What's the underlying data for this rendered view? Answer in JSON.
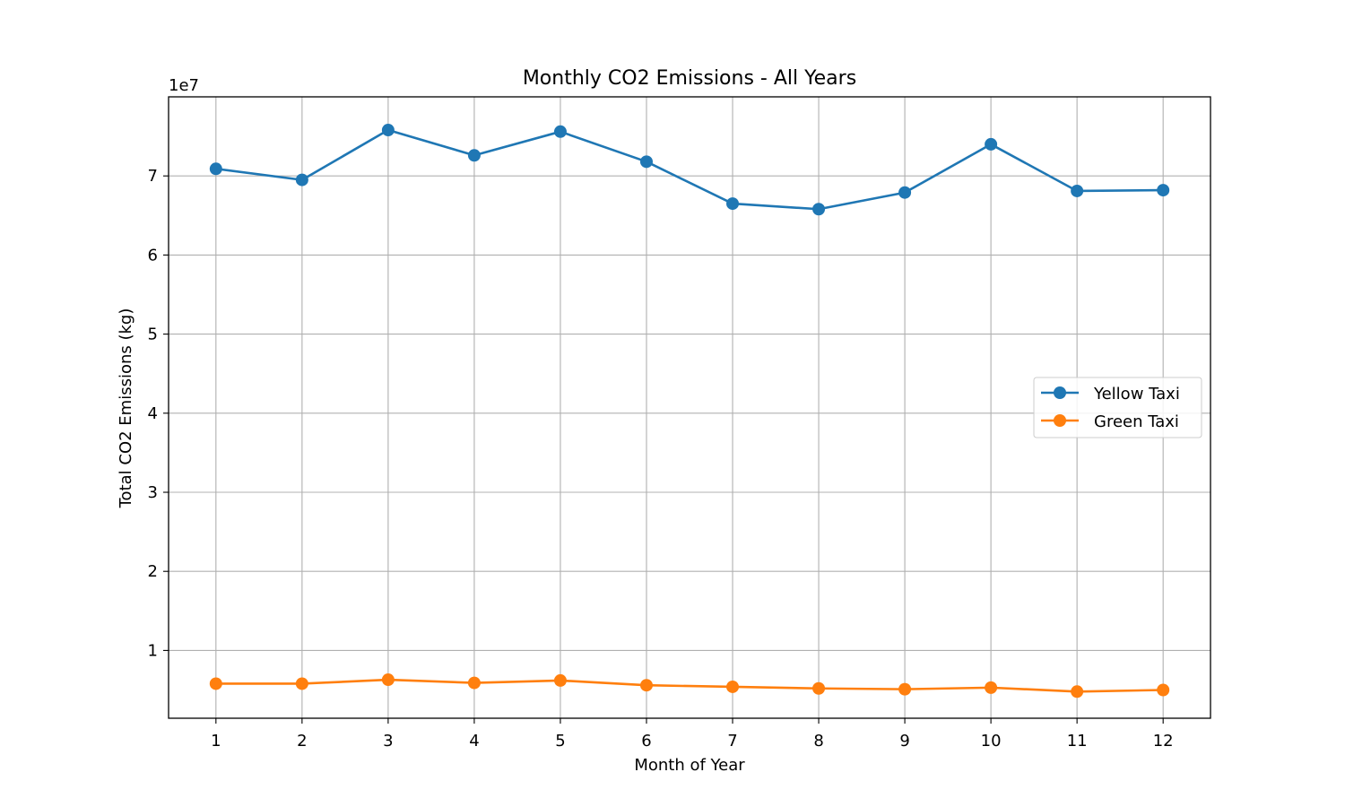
{
  "chart_data": {
    "type": "line",
    "title": "Monthly CO2 Emissions - All Years",
    "xlabel": "Month of Year",
    "ylabel": "Total CO2 Emissions (kg)",
    "y_offset_label": "1e7",
    "x": [
      1,
      2,
      3,
      4,
      5,
      6,
      7,
      8,
      9,
      10,
      11,
      12
    ],
    "x_ticks": [
      "1",
      "2",
      "3",
      "4",
      "5",
      "6",
      "7",
      "8",
      "9",
      "10",
      "11",
      "12"
    ],
    "xlim": [
      0.45,
      12.55
    ],
    "ylim": [
      1430000,
      80000000
    ],
    "y_ticks": [
      10000000,
      20000000,
      30000000,
      40000000,
      50000000,
      60000000,
      70000000
    ],
    "y_tick_labels": [
      "1",
      "2",
      "3",
      "4",
      "5",
      "6",
      "7"
    ],
    "grid": true,
    "legend_position": "center-right",
    "series": [
      {
        "name": "Yellow Taxi",
        "color": "#1f77b4",
        "marker": "circle",
        "values": [
          70900000,
          69500000,
          75800000,
          72600000,
          75600000,
          71800000,
          66500000,
          65800000,
          67900000,
          74000000,
          68100000,
          68200000
        ]
      },
      {
        "name": "Green Taxi",
        "color": "#ff7f0e",
        "marker": "circle",
        "values": [
          5800000,
          5800000,
          6300000,
          5900000,
          6200000,
          5600000,
          5400000,
          5200000,
          5100000,
          5300000,
          4800000,
          5000000
        ]
      }
    ]
  }
}
